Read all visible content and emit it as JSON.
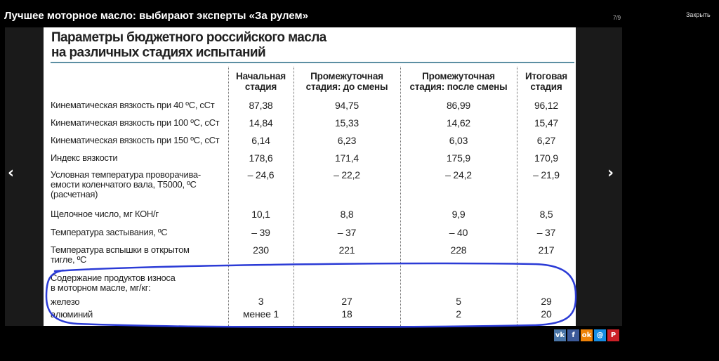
{
  "page": {
    "title": "Лучшее моторное масло: выбирают эксперты «За рулем»",
    "counter": "7/9",
    "close_label": "Закрыть"
  },
  "nav": {
    "prev_icon": "‹",
    "next_icon": "›"
  },
  "table": {
    "title_line1": "Параметры бюджетного российского масла",
    "title_line2": "на различных стадиях испытаний",
    "columns": [
      {
        "line1": "Начальная",
        "line2": "стадия"
      },
      {
        "line1": "Промежуточная",
        "line2": "стадия: до смены"
      },
      {
        "line1": "Промежуточная",
        "line2": "стадия: после смены"
      },
      {
        "line1": "Итоговая",
        "line2": "стадия"
      }
    ],
    "rows": [
      {
        "label": "Кинематическая вязкость при 40 ºС, сСт",
        "values": [
          "87,38",
          "94,75",
          "86,99",
          "96,12"
        ]
      },
      {
        "label": "Кинематическая вязкость при 100 ºС, сСт",
        "values": [
          "14,84",
          "15,33",
          "14,62",
          "15,47"
        ]
      },
      {
        "label": "Кинематическая вязкость при 150 ºС, сСт",
        "values": [
          "6,14",
          "6,23",
          "6,03",
          "6,27"
        ]
      },
      {
        "label": "Индекс вязкости",
        "values": [
          "178,6",
          "171,4",
          "175,9",
          "170,9"
        ]
      },
      {
        "label_lines": [
          "Условная температура проворачива-",
          "емости коленчатого вала, Т5000, ºС",
          "(расчетная)"
        ],
        "values": [
          "– 24,6",
          "– 22,2",
          "– 24,2",
          "– 21,9"
        ]
      },
      {
        "label": "Щелочное число, мг КОН/г",
        "values": [
          "10,1",
          "8,8",
          "9,9",
          "8,5"
        ]
      },
      {
        "label": "Температура застывания, ºС",
        "values": [
          "– 39",
          "– 37",
          "– 40",
          "– 37"
        ]
      },
      {
        "label_lines": [
          "Температура вспышки в открытом",
          "тигле, ºС"
        ],
        "values": [
          "230",
          "221",
          "228",
          "217"
        ]
      },
      {
        "label_lines": [
          "Содержание продуктов износа",
          "в моторном масле, мг/кг:"
        ]
      },
      {
        "label": "железо",
        "values": [
          "3",
          "27",
          "5",
          "29"
        ]
      },
      {
        "label": "алюминий",
        "values": [
          "менее 1",
          "18",
          "2",
          "20"
        ]
      }
    ]
  },
  "share": [
    {
      "icon": "vk-icon",
      "text": "vk",
      "color": "#4a76a8"
    },
    {
      "icon": "facebook-icon",
      "text": "f",
      "color": "#3b5998"
    },
    {
      "icon": "odnoklassniki-icon",
      "text": "ok",
      "color": "#ee8208"
    },
    {
      "icon": "moimir-icon",
      "text": "@",
      "color": "#168de2"
    },
    {
      "icon": "pinterest-icon",
      "text": "P",
      "color": "#cb2027"
    }
  ],
  "colors": {
    "annotation": "#2b3bd6",
    "rule": "#5c8fa3"
  }
}
